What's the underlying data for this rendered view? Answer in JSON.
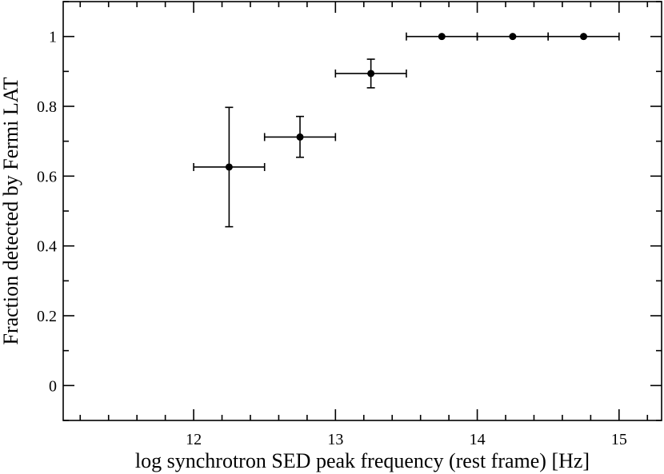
{
  "chart_data": {
    "type": "scatter",
    "title": "",
    "xlabel": "log synchrotron SED peak frequency (rest frame) [Hz]",
    "ylabel": "Fraction detected by Fermi LAT",
    "xlim": [
      11.08,
      15.3
    ],
    "ylim": [
      -0.1,
      1.1
    ],
    "xticks": [
      12,
      13,
      14,
      15
    ],
    "xtick_labels": [
      "12",
      "13",
      "14",
      "15"
    ],
    "yticks": [
      0,
      0.2,
      0.4,
      0.6,
      0.8,
      1
    ],
    "ytick_labels": [
      "0",
      "0.2",
      "0.4",
      "0.6",
      "0.8",
      "1"
    ],
    "x_minor_step": 0.2,
    "y_minor_step": 0.1,
    "grid": false,
    "legend": "none",
    "marker_color": "#000000",
    "points": [
      {
        "x": 12.25,
        "y": 0.626,
        "x_low": 12.0,
        "x_high": 12.5,
        "y_low": 0.455,
        "y_high": 0.797
      },
      {
        "x": 12.75,
        "y": 0.712,
        "x_low": 12.5,
        "x_high": 13.0,
        "y_low": 0.654,
        "y_high": 0.771
      },
      {
        "x": 13.25,
        "y": 0.894,
        "x_low": 13.0,
        "x_high": 13.5,
        "y_low": 0.853,
        "y_high": 0.935
      },
      {
        "x": 13.75,
        "y": 1.0,
        "x_low": 13.5,
        "x_high": 14.0
      },
      {
        "x": 14.25,
        "y": 1.0,
        "x_low": 14.0,
        "x_high": 14.5
      },
      {
        "x": 14.75,
        "y": 1.0,
        "x_low": 14.5,
        "x_high": 15.0
      }
    ]
  }
}
